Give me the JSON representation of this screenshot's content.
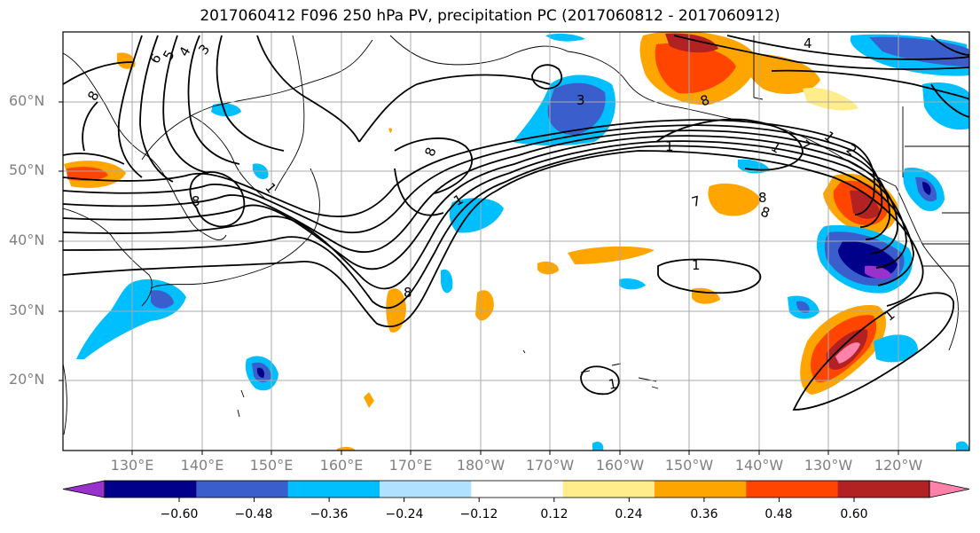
{
  "title": "2017060412 F096 250 hPa PV, precipitation PC (2017060812 - 2017060912)",
  "lat_labels": [
    "60°N",
    "50°N",
    "40°N",
    "30°N",
    "20°N"
  ],
  "lon_labels": [
    "130°E",
    "140°E",
    "150°E",
    "160°E",
    "170°E",
    "180°W",
    "170°W",
    "160°W",
    "150°W",
    "140°W",
    "130°W",
    "120°W"
  ],
  "colorbar": {
    "ticks": [
      "−0.60",
      "−0.48",
      "−0.36",
      "−0.24",
      "−0.12",
      "0.12",
      "0.24",
      "0.36",
      "0.48",
      "0.60"
    ],
    "colors": [
      "#9932cc",
      "#00008b",
      "#3a5fcd",
      "#00bfff",
      "#b0e2ff",
      "#ffffff",
      "#ffec8b",
      "#ffa500",
      "#ff4500",
      "#b22222",
      "#ff82ab"
    ]
  },
  "contour_labels": [
    "8",
    "6",
    "5",
    "4",
    "3",
    "1",
    "8",
    "8",
    "1",
    "8",
    "1",
    "1",
    "1",
    "4",
    "3",
    "1",
    "7",
    "8",
    "1",
    "7",
    "1",
    "2",
    "8",
    "8"
  ]
}
